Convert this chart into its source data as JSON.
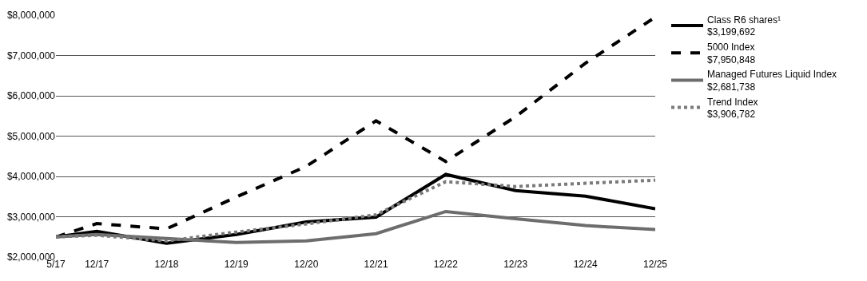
{
  "chart_data": {
    "type": "line",
    "x": [
      "2017-05",
      "2017-12",
      "2018-12",
      "2019-12",
      "2020-12",
      "2021-12",
      "2022-12",
      "2023-12",
      "2024-12",
      "2025-12"
    ],
    "series": [
      {
        "name": "Class R6 shares¹\n$3,199,692",
        "color": "#000000",
        "line_style": "solid",
        "values": [
          2500000,
          2640000,
          2340000,
          2560000,
          2870000,
          2990000,
          4050000,
          3650000,
          3510000,
          3199692
        ]
      },
      {
        "name": "5000 Index\n$7,950,848",
        "color": "#000000",
        "line_style": "dashed",
        "values": [
          2500000,
          2830000,
          2700000,
          3490000,
          4250000,
          5380000,
          4370000,
          5480000,
          6810000,
          7950848
        ]
      },
      {
        "name": "Managed Futures Liquid Index\n$2,681,738",
        "color": "#6d6d6d",
        "line_style": "solid",
        "values": [
          2500000,
          2560000,
          2460000,
          2360000,
          2400000,
          2580000,
          3130000,
          2950000,
          2780000,
          2681738
        ]
      },
      {
        "name": "Trend Index\n$3,906,782",
        "color": "#7a7a7a",
        "line_style": "dotted",
        "values": [
          2500000,
          2540000,
          2400000,
          2620000,
          2820000,
          3050000,
          3870000,
          3750000,
          3830000,
          3906782
        ]
      }
    ],
    "xlim": [
      "2017-05",
      "2025-12"
    ],
    "xticks": [
      {
        "value": "2017-05",
        "label": "5/17"
      },
      {
        "value": "2017-12",
        "label": "12/17"
      },
      {
        "value": "2018-12",
        "label": "12/18"
      },
      {
        "value": "2019-12",
        "label": "12/19"
      },
      {
        "value": "2020-12",
        "label": "12/20"
      },
      {
        "value": "2021-12",
        "label": "12/21"
      },
      {
        "value": "2022-12",
        "label": "12/22"
      },
      {
        "value": "2023-12",
        "label": "12/23"
      },
      {
        "value": "2024-12",
        "label": "12/24"
      },
      {
        "value": "2025-12",
        "label": "12/25"
      }
    ],
    "ylim": [
      2000000,
      8000000
    ],
    "yticks": [
      {
        "value": 2000000,
        "label": "$2,000,000"
      },
      {
        "value": 3000000,
        "label": "$3,000,000"
      },
      {
        "value": 4000000,
        "label": "$4,000,000"
      },
      {
        "value": 5000000,
        "label": "$5,000,000"
      },
      {
        "value": 6000000,
        "label": "$6,000,000"
      },
      {
        "value": 7000000,
        "label": "$7,000,000"
      },
      {
        "value": 8000000,
        "label": "$8,000,000"
      }
    ],
    "grid": "y",
    "legend": "right",
    "marker": "none"
  }
}
